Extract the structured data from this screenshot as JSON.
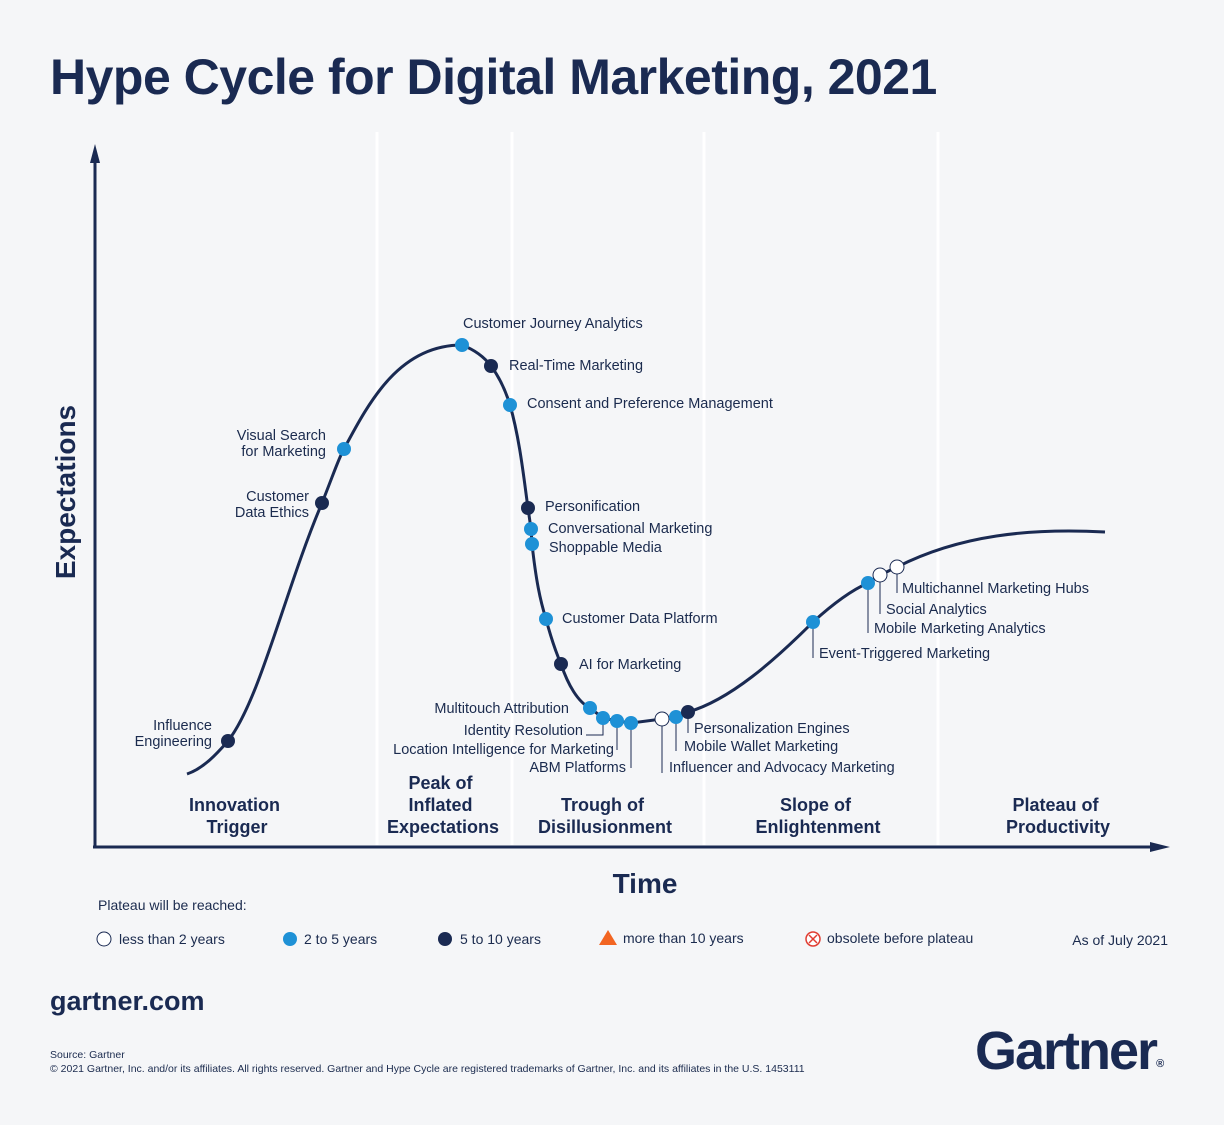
{
  "title": "Hype Cycle for Digital Marketing, 2021",
  "colors": {
    "navy": "#1a2a52",
    "dark_dot": "#1a2a52",
    "blue_dot": "#1e91d6",
    "white_dot": "#ffffff",
    "orange": "#f26522",
    "red": "#e03c31",
    "background": "#f5f6f8"
  },
  "axes": {
    "y": "Expectations",
    "x": "Time"
  },
  "phases": [
    {
      "lines": [
        "Innovation",
        "Trigger"
      ]
    },
    {
      "lines": [
        "Peak of",
        "Inflated",
        "Expectations"
      ]
    },
    {
      "lines": [
        "Trough of",
        "Disillusionment"
      ]
    },
    {
      "lines": [
        "Slope of",
        "Enlightenment"
      ]
    },
    {
      "lines": [
        "Plateau of",
        "Productivity"
      ]
    }
  ],
  "technologies": [
    {
      "lines": [
        "Influence",
        "Engineering"
      ],
      "plateau": "5 to 10 years"
    },
    {
      "lines": [
        "Customer",
        "Data Ethics"
      ],
      "plateau": "5 to 10 years"
    },
    {
      "lines": [
        "Visual  Search",
        "for Marketing"
      ],
      "plateau": "2 to 5 years"
    },
    {
      "lines": [
        "Customer Journey Analytics"
      ],
      "plateau": "2 to 5 years"
    },
    {
      "lines": [
        "Real-Time Marketing"
      ],
      "plateau": "5 to 10 years"
    },
    {
      "lines": [
        "Consent and Preference Management"
      ],
      "plateau": "2 to 5 years"
    },
    {
      "lines": [
        "Personification"
      ],
      "plateau": "5 to 10 years"
    },
    {
      "lines": [
        "Conversational Marketing"
      ],
      "plateau": "2 to 5 years"
    },
    {
      "lines": [
        "Shoppable Media"
      ],
      "plateau": "2 to 5 years"
    },
    {
      "lines": [
        "Customer Data Platform"
      ],
      "plateau": "2 to 5 years"
    },
    {
      "lines": [
        "AI for Marketing"
      ],
      "plateau": "5 to 10 years"
    },
    {
      "lines": [
        "Multitouch Attribution"
      ],
      "plateau": "2 to 5 years"
    },
    {
      "lines": [
        "Identity Resolution"
      ],
      "plateau": "2 to 5 years"
    },
    {
      "lines": [
        "Location Intelligence for Marketing"
      ],
      "plateau": "2 to 5 years"
    },
    {
      "lines": [
        "ABM Platforms"
      ],
      "plateau": "2 to 5 years"
    },
    {
      "lines": [
        "Influencer and Advocacy Marketing"
      ],
      "plateau": "less than 2 years"
    },
    {
      "lines": [
        "Mobile Wallet Marketing"
      ],
      "plateau": "2 to 5 years"
    },
    {
      "lines": [
        "Personalization Engines"
      ],
      "plateau": "5 to 10 years"
    },
    {
      "lines": [
        "Event-Triggered Marketing"
      ],
      "plateau": "2 to 5 years"
    },
    {
      "lines": [
        "Mobile Marketing Analytics"
      ],
      "plateau": "2 to 5 years"
    },
    {
      "lines": [
        "Social Analytics"
      ],
      "plateau": "less than 2 years"
    },
    {
      "lines": [
        "Multichannel Marketing Hubs"
      ],
      "plateau": "less than 2 years"
    }
  ],
  "legend": {
    "heading": "Plateau will be reached:",
    "items": [
      {
        "symbol": "white-circle",
        "label": "less than 2 years"
      },
      {
        "symbol": "blue-circle",
        "label": "2 to 5 years"
      },
      {
        "symbol": "navy-circle",
        "label": "5 to 10 years"
      },
      {
        "symbol": "orange-triangle",
        "label": "more than 10 years"
      },
      {
        "symbol": "red-crossed-circle",
        "label": "obsolete before plateau"
      }
    ],
    "as_of": "As of July 2021"
  },
  "footer": {
    "site": "gartner.com",
    "source": "Source: Gartner",
    "copyright": "© 2021 Gartner, Inc. and/or its affiliates. All rights reserved. Gartner and Hype Cycle are registered trademarks of Gartner, Inc. and its affiliates in the U.S. 1453111",
    "logo": "Gartner",
    "logo_mark": "®"
  }
}
